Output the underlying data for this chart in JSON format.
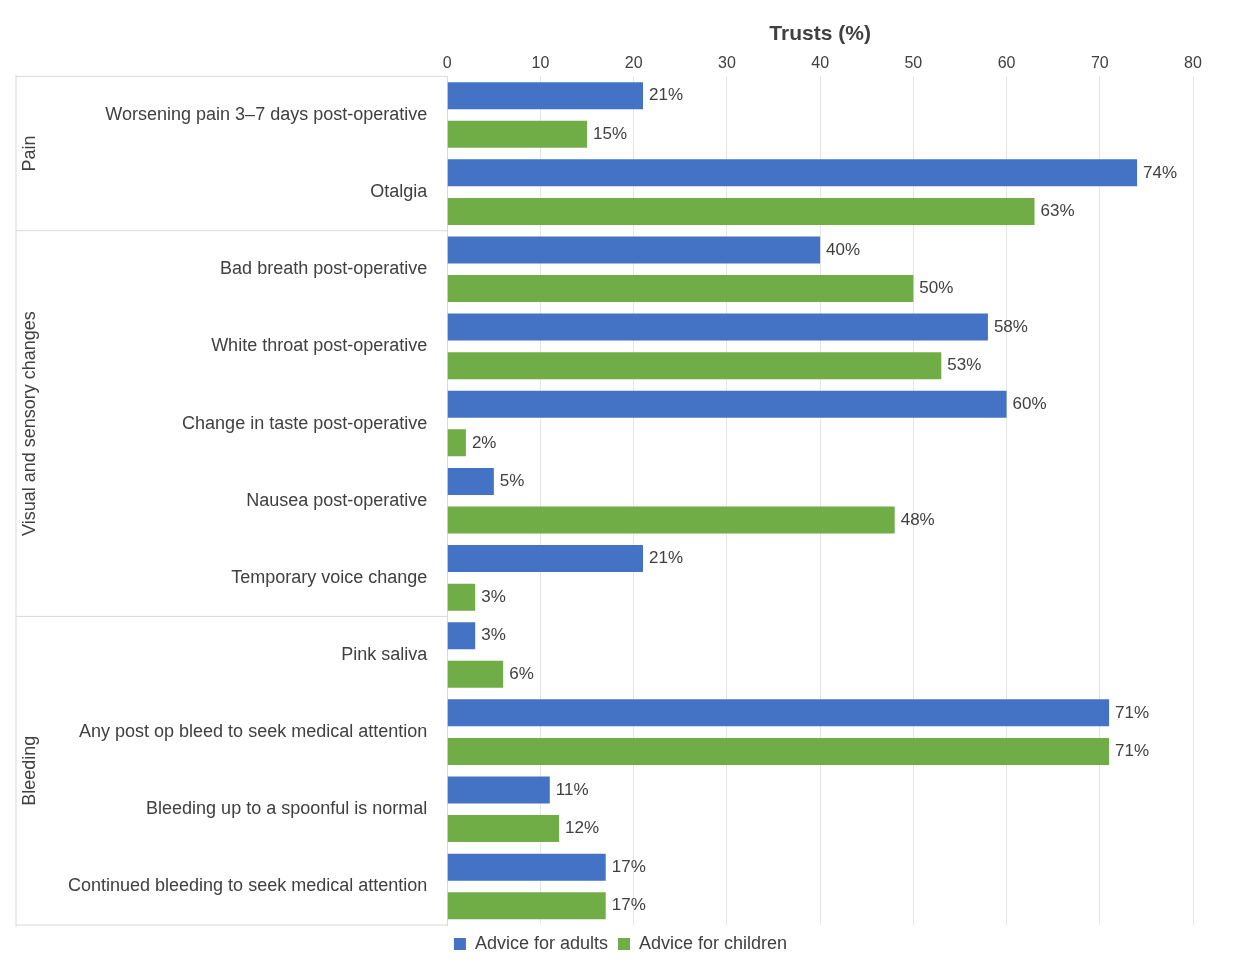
{
  "chart_data": {
    "type": "bar",
    "orientation": "horizontal",
    "xlabel": "Trusts (%)",
    "categories": [
      "Worsening pain 3–7 days post-operative",
      "Otalgia",
      "Bad breath post-operative",
      "White throat post-operative",
      "Change in taste post-operative",
      "Nausea post-operative",
      "Temporary voice change",
      "Pink saliva",
      "Any post op bleed to seek medical attention",
      "Bleeding up to a spoonful is normal",
      "Continued bleeding to seek medical attention"
    ],
    "series": [
      {
        "name": "Advice for adults",
        "color": "#4472c4",
        "values": [
          21,
          74,
          40,
          58,
          60,
          5,
          21,
          3,
          71,
          11,
          17
        ],
        "value_labels": [
          "21%",
          "74%",
          "40%",
          "58%",
          "60%",
          "5%",
          "21%",
          "3%",
          "71%",
          "11%",
          "17%"
        ]
      },
      {
        "name": "Advice for children",
        "color": "#70ad47",
        "values": [
          15,
          63,
          50,
          53,
          2,
          48,
          3,
          6,
          71,
          12,
          17
        ],
        "value_labels": [
          "15%",
          "63%",
          "50%",
          "53%",
          "2%",
          "48%",
          "3%",
          "6%",
          "71%",
          "12%",
          "17%"
        ]
      }
    ],
    "xlim": [
      0,
      80
    ],
    "xticks": [
      0,
      10,
      20,
      30,
      40,
      50,
      60,
      70,
      80
    ],
    "grid": "x",
    "legend": "bottom",
    "annotations": [
      "Pain",
      "Visual and sensory changes",
      "Bleeding"
    ]
  }
}
